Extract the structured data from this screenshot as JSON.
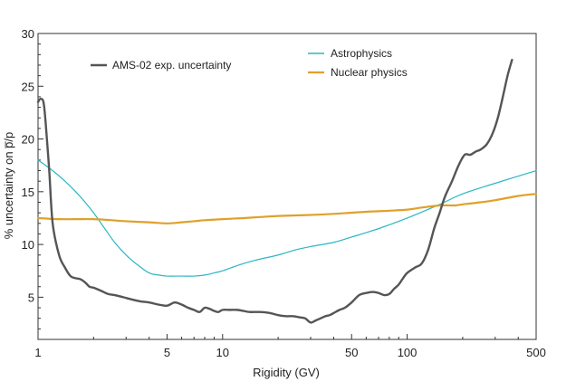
{
  "chart_data": {
    "type": "line",
    "xlabel": "Rigidity (GV)",
    "ylabel": "% uncertainty on p̅/p",
    "xscale": "log",
    "xlim": [
      1,
      500
    ],
    "ylim": [
      1,
      30
    ],
    "grid": false,
    "xticks": [
      1,
      5,
      10,
      50,
      100,
      500
    ],
    "xtick_labels": [
      "1",
      "5",
      "10",
      "50",
      "100",
      "500"
    ],
    "yticks": [
      5,
      10,
      15,
      20,
      25,
      30
    ],
    "ytick_labels": [
      "5",
      "10",
      "15",
      "20",
      "25",
      "30"
    ],
    "legend": "top",
    "series": [
      {
        "name": "AMS-02 exp. uncertainty",
        "color": "#555555",
        "x": [
          1.0,
          1.03,
          1.07,
          1.1,
          1.15,
          1.2,
          1.3,
          1.4,
          1.5,
          1.6,
          1.7,
          1.8,
          1.9,
          2.0,
          2.2,
          2.4,
          2.6,
          2.9,
          3.2,
          3.6,
          4.0,
          4.5,
          5.0,
          5.5,
          6.0,
          6.5,
          7.0,
          7.5,
          8.0,
          8.5,
          9.0,
          9.5,
          10,
          11,
          12,
          13,
          14,
          16,
          18,
          20,
          22,
          24,
          26,
          28,
          30,
          32,
          34,
          36,
          38,
          40,
          43,
          46,
          50,
          55,
          60,
          65,
          70,
          75,
          80,
          85,
          90,
          95,
          100,
          110,
          120,
          130,
          140,
          150,
          160,
          175,
          190,
          205,
          220,
          235,
          250,
          270,
          290,
          310,
          330,
          350,
          370
        ],
        "y": [
          23.5,
          23.8,
          23.5,
          21.5,
          17.0,
          12.0,
          9.0,
          7.8,
          7.0,
          6.8,
          6.7,
          6.4,
          6.0,
          5.9,
          5.6,
          5.3,
          5.2,
          5.0,
          4.8,
          4.6,
          4.5,
          4.3,
          4.2,
          4.5,
          4.3,
          4.0,
          3.8,
          3.6,
          4.0,
          3.9,
          3.7,
          3.6,
          3.8,
          3.8,
          3.8,
          3.7,
          3.6,
          3.6,
          3.5,
          3.3,
          3.2,
          3.2,
          3.1,
          3.0,
          2.6,
          2.8,
          3.0,
          3.2,
          3.3,
          3.5,
          3.8,
          4.0,
          4.5,
          5.2,
          5.4,
          5.5,
          5.4,
          5.2,
          5.3,
          5.8,
          6.2,
          6.8,
          7.3,
          7.8,
          8.2,
          9.5,
          11.5,
          13.0,
          14.5,
          16.0,
          17.5,
          18.5,
          18.5,
          18.8,
          19.0,
          19.5,
          20.5,
          22.0,
          24.0,
          26.0,
          27.5
        ]
      },
      {
        "name": "Astrophysics",
        "color": "#2ab7c3",
        "x": [
          1.0,
          1.2,
          1.4,
          1.6,
          1.8,
          2.0,
          2.3,
          2.6,
          3.0,
          3.5,
          4.0,
          4.5,
          5.0,
          5.5,
          6.0,
          7.0,
          8.0,
          9.0,
          10,
          12,
          15,
          20,
          25,
          30,
          40,
          50,
          70,
          100,
          150,
          200,
          300,
          500
        ],
        "y": [
          18.0,
          17.0,
          16.0,
          15.0,
          14.0,
          13.0,
          11.5,
          10.2,
          9.0,
          8.0,
          7.3,
          7.1,
          7.0,
          7.0,
          7.0,
          7.0,
          7.1,
          7.3,
          7.5,
          8.0,
          8.5,
          9.0,
          9.5,
          9.8,
          10.2,
          10.7,
          11.5,
          12.5,
          13.8,
          14.8,
          15.8,
          17.0
        ]
      },
      {
        "name": "Nuclear physics",
        "color": "#e0a02b",
        "x": [
          1.0,
          1.3,
          1.6,
          2.0,
          2.5,
          3.0,
          4.0,
          5.0,
          6.0,
          7.0,
          8.0,
          10,
          13,
          16,
          20,
          30,
          40,
          60,
          80,
          100,
          120,
          150,
          180,
          200,
          250,
          300,
          400,
          500
        ],
        "y": [
          12.5,
          12.4,
          12.4,
          12.4,
          12.3,
          12.2,
          12.1,
          12.0,
          12.1,
          12.2,
          12.3,
          12.4,
          12.5,
          12.6,
          12.7,
          12.8,
          12.9,
          13.1,
          13.2,
          13.3,
          13.5,
          13.7,
          13.7,
          13.8,
          14.0,
          14.2,
          14.6,
          14.8
        ]
      }
    ]
  }
}
